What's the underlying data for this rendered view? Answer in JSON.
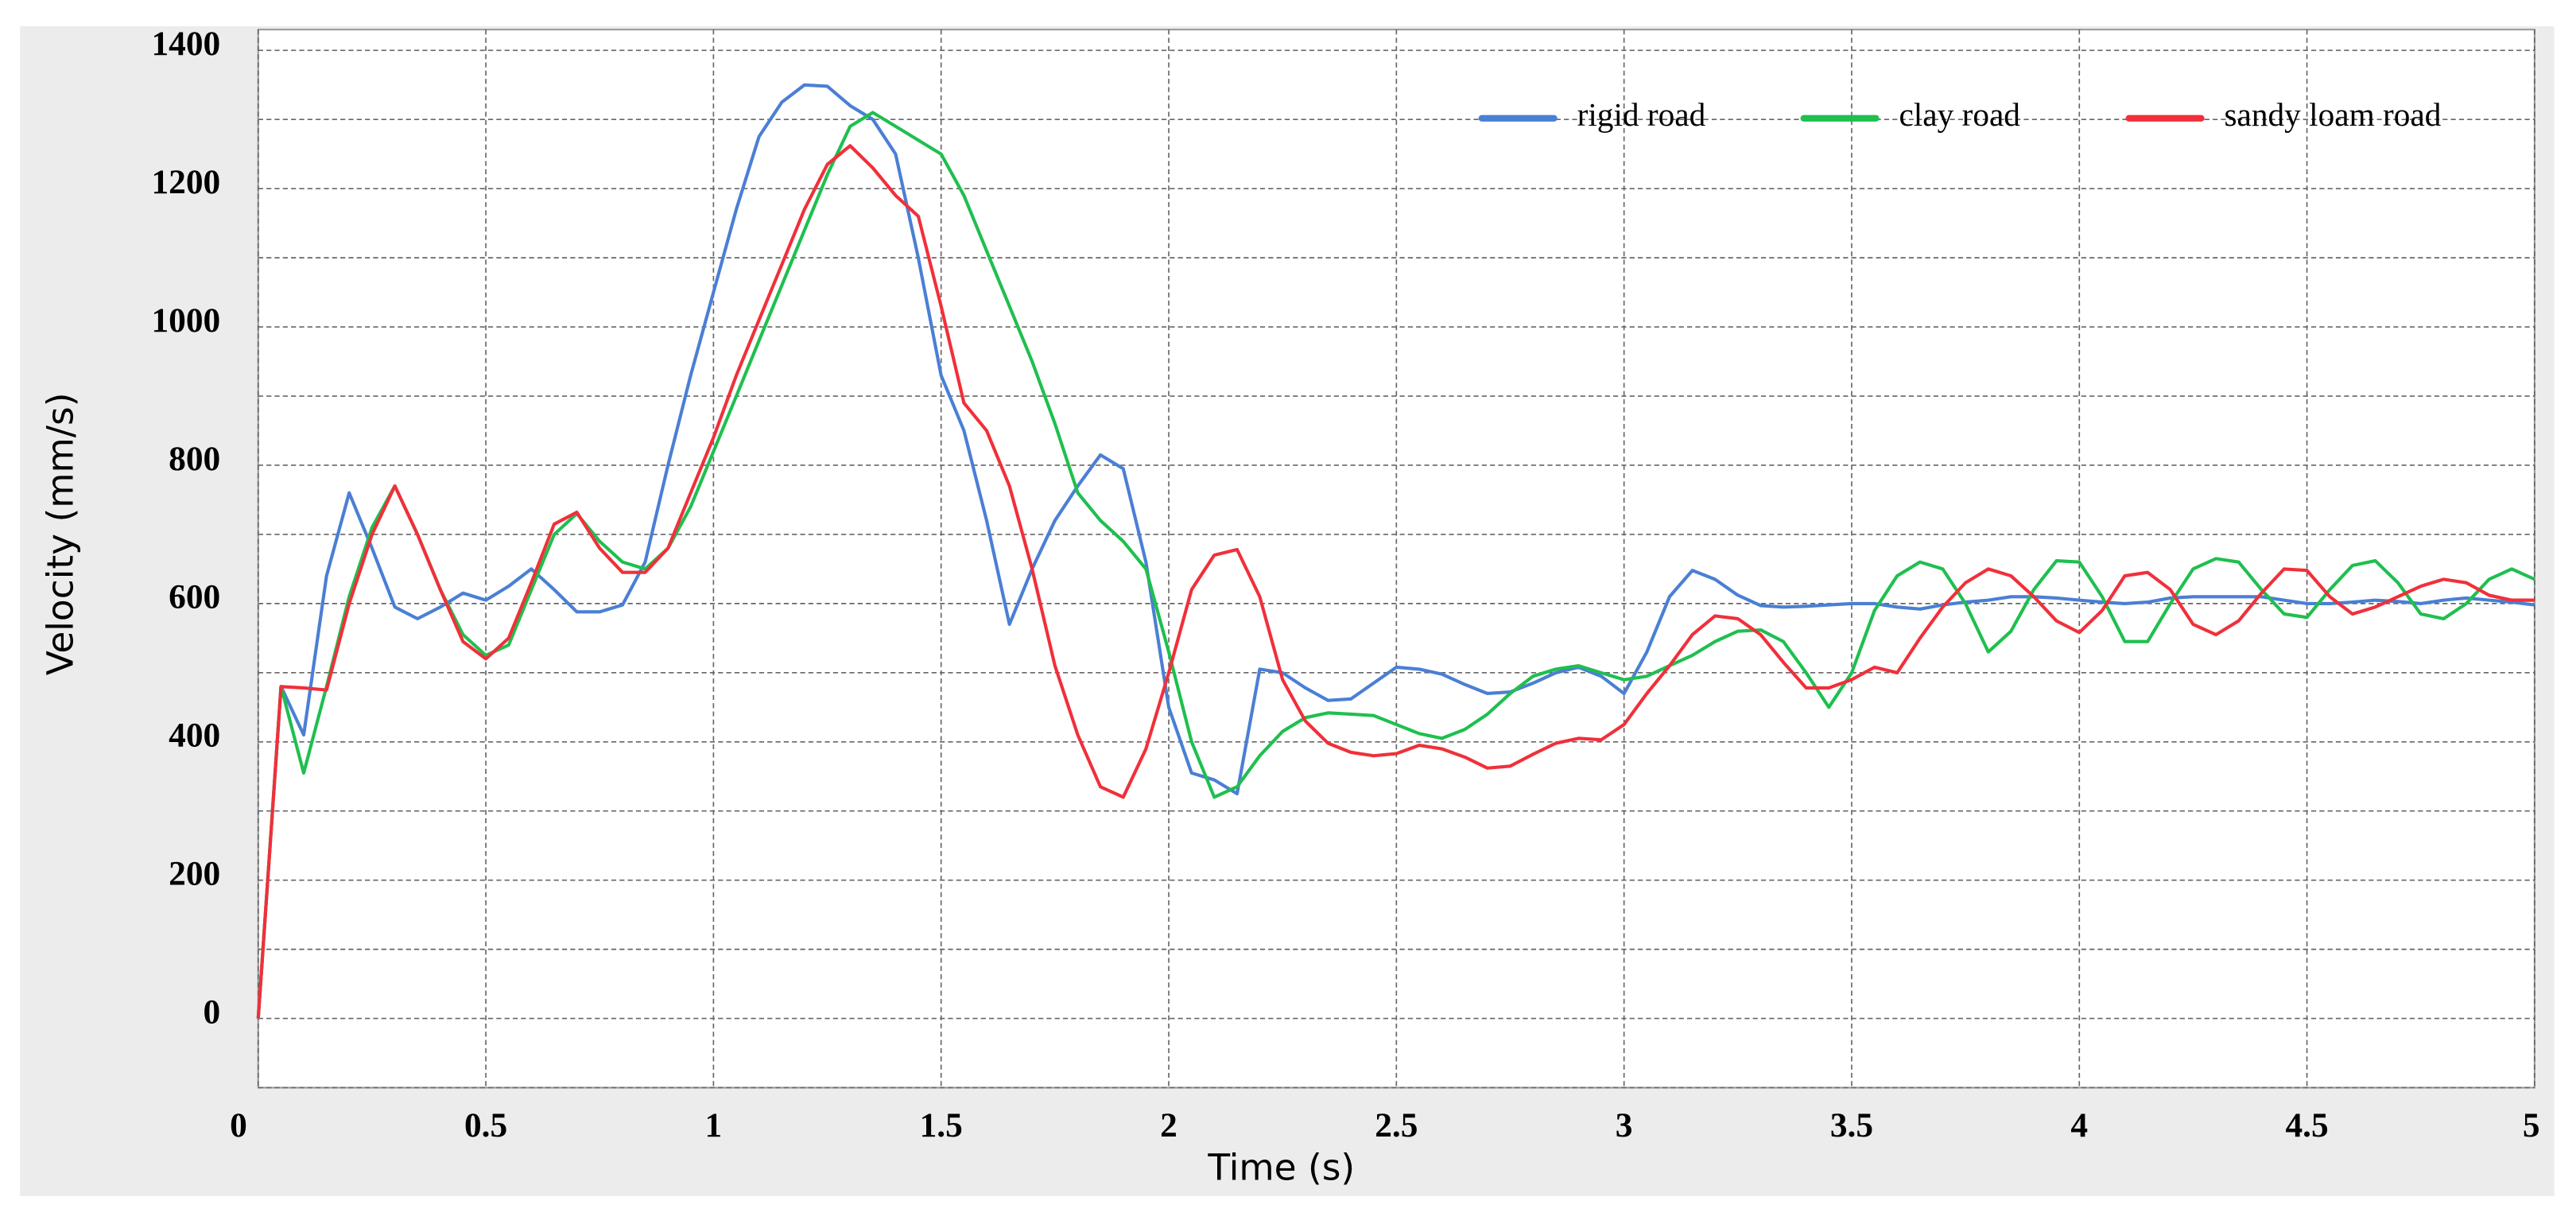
{
  "chart_data": {
    "type": "line",
    "xlabel": "Time (s)",
    "ylabel": "Velocity (mm/s)",
    "x": [
      0,
      0.05,
      0.1,
      0.15,
      0.2,
      0.25,
      0.3,
      0.35,
      0.4,
      0.45,
      0.5,
      0.55,
      0.6,
      0.65,
      0.7,
      0.75,
      0.8,
      0.85,
      0.9,
      0.95,
      1,
      1.05,
      1.1,
      1.15,
      1.2,
      1.25,
      1.3,
      1.35,
      1.4,
      1.45,
      1.5,
      1.55,
      1.6,
      1.65,
      1.7,
      1.75,
      1.8,
      1.85,
      1.9,
      1.95,
      2,
      2.05,
      2.1,
      2.15,
      2.2,
      2.25,
      2.3,
      2.35,
      2.4,
      2.45,
      2.5,
      2.55,
      2.6,
      2.65,
      2.7,
      2.75,
      2.8,
      2.85,
      2.9,
      2.95,
      3,
      3.05,
      3.1,
      3.15,
      3.2,
      3.25,
      3.3,
      3.35,
      3.4,
      3.45,
      3.5,
      3.55,
      3.6,
      3.65,
      3.7,
      3.75,
      3.8,
      3.85,
      3.9,
      3.95,
      4,
      4.05,
      4.1,
      4.15,
      4.2,
      4.25,
      4.3,
      4.35,
      4.4,
      4.45,
      4.5,
      4.55,
      4.6,
      4.65,
      4.7,
      4.75,
      4.8,
      4.85,
      4.9,
      4.95,
      5
    ],
    "series": [
      {
        "name": "rigid road",
        "color": "#4a7fd4",
        "values": [
          0,
          480,
          410,
          640,
          760,
          680,
          595,
          578,
          595,
          615,
          605,
          625,
          650,
          620,
          588,
          588,
          598,
          660,
          800,
          930,
          1050,
          1170,
          1275,
          1325,
          1350,
          1348,
          1320,
          1300,
          1250,
          1100,
          930,
          850,
          720,
          570,
          650,
          720,
          770,
          815,
          795,
          660,
          450,
          355,
          345,
          325,
          505,
          500,
          478,
          460,
          462,
          485,
          508,
          505,
          498,
          483,
          470,
          472,
          485,
          500,
          508,
          495,
          470,
          530,
          610,
          648,
          635,
          612,
          597,
          595,
          596,
          598,
          600,
          600,
          595,
          592,
          598,
          602,
          605,
          610,
          610,
          608,
          605,
          602,
          600,
          602,
          608,
          610,
          610,
          610,
          610,
          605,
          600,
          600,
          602,
          605,
          603,
          600,
          605,
          608,
          605,
          602,
          598
        ]
      },
      {
        "name": "clay road",
        "color": "#1fbf4f",
        "values": [
          0,
          480,
          355,
          480,
          610,
          710,
          770,
          700,
          620,
          555,
          525,
          540,
          620,
          700,
          730,
          690,
          660,
          650,
          680,
          740,
          820,
          900,
          980,
          1060,
          1140,
          1220,
          1290,
          1310,
          1290,
          1270,
          1250,
          1190,
          1110,
          1030,
          950,
          860,
          760,
          720,
          690,
          650,
          530,
          400,
          320,
          335,
          380,
          415,
          435,
          442,
          440,
          438,
          425,
          412,
          405,
          418,
          440,
          470,
          495,
          505,
          510,
          500,
          490,
          495,
          510,
          525,
          545,
          560,
          562,
          545,
          500,
          450,
          500,
          590,
          640,
          660,
          650,
          600,
          530,
          560,
          620,
          662,
          660,
          610,
          545,
          545,
          600,
          650,
          665,
          660,
          620,
          585,
          580,
          620,
          655,
          662,
          630,
          585,
          578,
          600,
          635,
          650,
          635
        ]
      },
      {
        "name": "sandy loam road",
        "color": "#f0303a",
        "values": [
          0,
          480,
          478,
          475,
          600,
          700,
          770,
          700,
          620,
          545,
          520,
          550,
          630,
          715,
          732,
          680,
          645,
          645,
          680,
          760,
          840,
          930,
          1010,
          1090,
          1170,
          1235,
          1262,
          1230,
          1190,
          1160,
          1030,
          890,
          850,
          770,
          650,
          510,
          410,
          335,
          320,
          390,
          500,
          620,
          670,
          678,
          610,
          490,
          430,
          398,
          385,
          380,
          383,
          395,
          390,
          378,
          362,
          365,
          382,
          398,
          405,
          403,
          425,
          470,
          510,
          555,
          582,
          578,
          555,
          515,
          478,
          478,
          490,
          508,
          500,
          550,
          595,
          630,
          650,
          640,
          610,
          575,
          558,
          590,
          640,
          645,
          620,
          570,
          555,
          575,
          615,
          650,
          648,
          610,
          585,
          595,
          610,
          625,
          635,
          630,
          612,
          605,
          605
        ]
      }
    ],
    "xlim": [
      0,
      5
    ],
    "xticks": [
      0,
      0.5,
      1,
      1.5,
      2,
      2.5,
      3,
      3.5,
      4,
      4.5,
      5
    ],
    "ylim": [
      -100,
      1430
    ],
    "yticks": [
      0,
      200,
      400,
      600,
      800,
      1000,
      1200,
      1400
    ],
    "y_minor_ticks": [
      -100,
      100,
      300,
      500,
      700,
      900,
      1100,
      1300
    ],
    "grid": true,
    "legend": "upper right"
  }
}
